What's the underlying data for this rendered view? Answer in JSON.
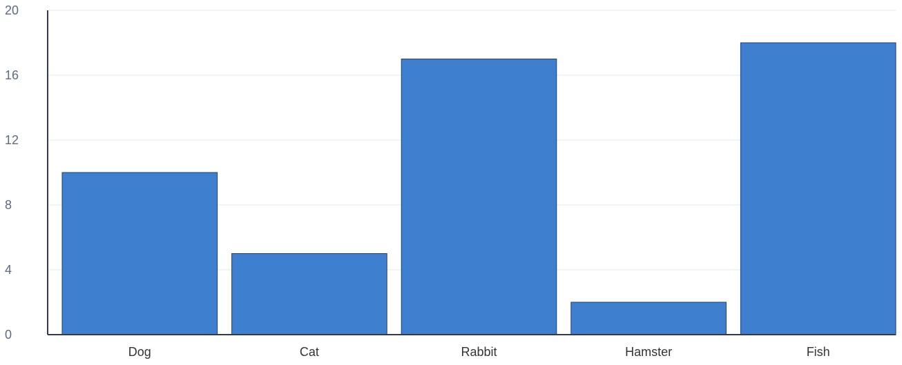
{
  "chart_data": {
    "type": "bar",
    "title": "",
    "xlabel": "",
    "ylabel": "",
    "categories": [
      "Dog",
      "Cat",
      "Rabbit",
      "Hamster",
      "Fish"
    ],
    "values": [
      10,
      5,
      17,
      2,
      18
    ],
    "ylim": [
      0,
      20
    ],
    "yticks": [
      "0",
      "4",
      "8",
      "12",
      "16",
      "20"
    ],
    "grid": true,
    "legend": "none",
    "colors": {
      "bar_fill": "#3e7fd0",
      "bar_stroke": "#1f3f73",
      "grid": "#e3e8ef",
      "axis": "#2f3b4c",
      "tick_label": "#5b6b82",
      "category_label": "#333333"
    }
  }
}
